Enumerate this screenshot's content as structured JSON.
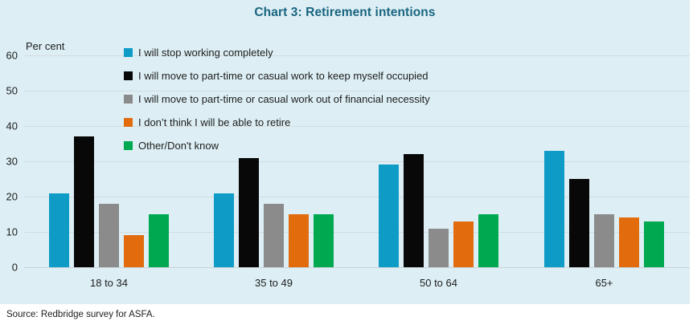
{
  "title": "Chart 3: Retirement intentions",
  "source": "Source: Redbridge survey for ASFA.",
  "colors": {
    "page_background": "#ffffff",
    "panel_background": "#ddeff5",
    "title": "#19647f",
    "gridline": "#d3dbdf",
    "axis_line": "#c9d2d6",
    "text": "#1c1c1c"
  },
  "chart_data": {
    "type": "bar",
    "title": "Chart 3: Retirement intentions",
    "xlabel": "",
    "ylabel": "Per cent",
    "ylim": [
      0,
      60
    ],
    "yticks": [
      0,
      10,
      20,
      30,
      40,
      50,
      60
    ],
    "grid": true,
    "legend_position": "inside-top-left",
    "categories": [
      "18 to 34",
      "35 to 49",
      "50 to 64",
      "65+"
    ],
    "series": [
      {
        "name": "I will stop working completely",
        "color": "#0e9bc6",
        "values": [
          21,
          21,
          29,
          33
        ]
      },
      {
        "name": "I will move to part-time or casual work to keep myself occupied",
        "color": "#080808",
        "values": [
          37,
          31,
          32,
          25
        ]
      },
      {
        "name": "I will move to part-time or casual work out of financial necessity",
        "color": "#8b8b8b",
        "values": [
          18,
          18,
          11,
          15
        ]
      },
      {
        "name": "I don’t think I will be able to retire",
        "color": "#e26c0d",
        "values": [
          9,
          15,
          13,
          14
        ]
      },
      {
        "name": "Other/Don't know",
        "color": "#00a84f",
        "values": [
          15,
          15,
          15,
          13
        ]
      }
    ]
  }
}
